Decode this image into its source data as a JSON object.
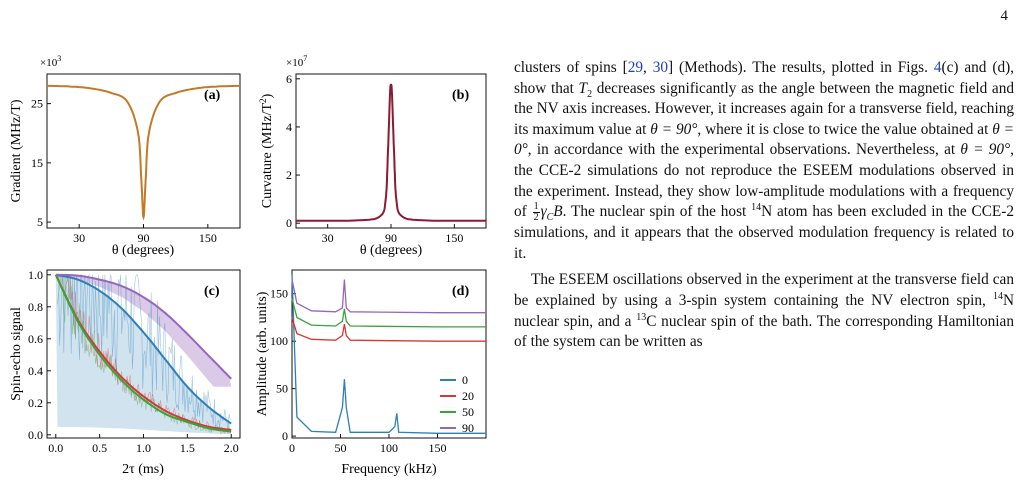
{
  "page_number": "4",
  "colors": {
    "gradient_curve": "#c47a25",
    "curvature_curve": "#8b1a33",
    "angle_0": "#2d7fb8",
    "angle_20": "#d93636",
    "angle_50": "#3aa33a",
    "angle_90": "#9467bd"
  },
  "panels": {
    "a": {
      "label": "(a)",
      "ylabel": "Gradient (MHz/T)",
      "xlabel": "θ (degrees)",
      "multiplier": "×10",
      "multiplier_exp": "3",
      "yticks": [
        "5",
        "15",
        "25"
      ],
      "xticks": [
        "30",
        "90",
        "150"
      ]
    },
    "b": {
      "label": "(b)",
      "ylabel": "Curvature (MHz/T",
      "ylabel_sup": "2",
      "ylabel_end": ")",
      "xlabel": "θ (degrees)",
      "multiplier": "×10",
      "multiplier_exp": "7",
      "yticks": [
        "0",
        "2",
        "4",
        "6"
      ],
      "xticks": [
        "30",
        "90",
        "150"
      ]
    },
    "c": {
      "label": "(c)",
      "ylabel": "Spin-echo signal",
      "xlabel": "2τ (ms)",
      "yticks": [
        "0.0",
        "0.2",
        "0.4",
        "0.6",
        "0.8",
        "1.0"
      ],
      "xticks": [
        "0.0",
        "0.5",
        "1.0",
        "1.5",
        "2.0"
      ]
    },
    "d": {
      "label": "(d)",
      "ylabel": "Amplitude (arb. units)",
      "xlabel": "Frequency (kHz)",
      "yticks": [
        "0",
        "50",
        "100",
        "150"
      ],
      "xticks": [
        "0",
        "50",
        "100",
        "150"
      ],
      "legend": [
        "0",
        "20",
        "50",
        "90"
      ]
    }
  },
  "chart_data": [
    {
      "type": "line",
      "panel": "a",
      "x": [
        0,
        20,
        40,
        60,
        75,
        85,
        88,
        90,
        92,
        95,
        105,
        120,
        140,
        160,
        180
      ],
      "y": [
        28,
        27.9,
        27.6,
        26.8,
        25.3,
        20,
        12,
        5.8,
        12,
        20,
        25.3,
        26.8,
        27.6,
        27.9,
        28
      ],
      "xlim": [
        0,
        180
      ],
      "ylim": [
        4,
        30
      ]
    },
    {
      "type": "line",
      "panel": "b",
      "x": [
        0,
        60,
        80,
        85,
        87,
        89,
        90,
        91,
        93,
        95,
        100,
        120,
        180
      ],
      "y": [
        0.1,
        0.12,
        0.3,
        1.0,
        2.8,
        5.3,
        5.75,
        5.3,
        2.8,
        1.0,
        0.3,
        0.12,
        0.1
      ],
      "xlim": [
        0,
        180
      ],
      "ylim": [
        -0.2,
        6.2
      ]
    },
    {
      "type": "line",
      "panel": "c",
      "xlim": [
        -0.1,
        2.1
      ],
      "ylim": [
        -0.02,
        1.03
      ],
      "series": [
        {
          "name": "0",
          "x": [
            0,
            0.25,
            0.5,
            0.75,
            1.0,
            1.25,
            1.5,
            1.75,
            2.0
          ],
          "y": [
            1.0,
            0.97,
            0.9,
            0.79,
            0.64,
            0.47,
            0.3,
            0.17,
            0.07
          ]
        },
        {
          "name": "20",
          "x": [
            0,
            0.25,
            0.5,
            0.75,
            1.0,
            1.25,
            1.5,
            1.75,
            2.0
          ],
          "y": [
            1.0,
            0.72,
            0.52,
            0.36,
            0.24,
            0.15,
            0.09,
            0.05,
            0.03
          ]
        },
        {
          "name": "50",
          "x": [
            0,
            0.25,
            0.5,
            0.75,
            1.0,
            1.25,
            1.5,
            1.75,
            2.0
          ],
          "y": [
            1.0,
            0.71,
            0.5,
            0.34,
            0.22,
            0.13,
            0.08,
            0.04,
            0.02
          ]
        },
        {
          "name": "90",
          "x": [
            0,
            0.25,
            0.5,
            0.75,
            1.0,
            1.25,
            1.5,
            1.75,
            2.0
          ],
          "y": [
            1.0,
            0.995,
            0.97,
            0.93,
            0.86,
            0.76,
            0.63,
            0.49,
            0.35
          ]
        }
      ]
    },
    {
      "type": "line",
      "panel": "d",
      "xlim": [
        0,
        200
      ],
      "ylim": [
        -2,
        175
      ],
      "series": [
        {
          "name": "0",
          "x": [
            0,
            5,
            20,
            45,
            52,
            54,
            56,
            60,
            100,
            106,
            108,
            110,
            150,
            200
          ],
          "y": [
            170,
            20,
            5,
            4,
            30,
            60,
            30,
            4,
            4,
            10,
            24,
            4,
            3,
            3
          ]
        },
        {
          "name": "20",
          "x": [
            0,
            5,
            20,
            45,
            52,
            54,
            56,
            60,
            150,
            200
          ],
          "y": [
            125,
            108,
            102,
            101,
            106,
            118,
            106,
            101,
            100,
            100
          ]
        },
        {
          "name": "50",
          "x": [
            0,
            5,
            20,
            45,
            52,
            54,
            56,
            60,
            150,
            200
          ],
          "y": [
            145,
            125,
            117,
            116,
            121,
            134,
            121,
            116,
            115,
            115
          ]
        },
        {
          "name": "90",
          "x": [
            0,
            5,
            20,
            45,
            52,
            54,
            56,
            60,
            150,
            200
          ],
          "y": [
            165,
            140,
            132,
            131,
            135,
            165,
            135,
            131,
            130,
            130
          ]
        }
      ]
    }
  ],
  "text": {
    "p1_a": "clusters of spins [",
    "ref_29": "29",
    "ref_sep": ", ",
    "ref_30": "30",
    "p1_b": "] (Methods). The results, plotted in Figs. ",
    "fig_ref": "4",
    "p1_c": "(c) and (d), show that ",
    "T": "T",
    "T_sub": "2",
    "p1_d": " decreases significantly as the angle between the magnetic field and the NV axis increases. However, it increases again for a transverse field, reaching its maximum value at ",
    "theta90": "θ = 90°",
    "p1_e": ", where it is close to twice the value obtained at ",
    "theta0": "θ = 0°",
    "p1_f": ", in accordance with the experimental observations. Nevertheless, at ",
    "p1_g": ", the CCE-2 simulations do not reproduce the ESEEM modulations observed in the experiment. Instead, they show low-amplitude modulations with a frequency of ",
    "frac_num": "1",
    "frac_den": "2",
    "gamma": "γ",
    "gamma_sub": "C",
    "B": "B",
    "p1_h": ". The nuclear spin of the host ",
    "n14": "14",
    "p1_i": "N atom has been excluded in the CCE-2 simulations, and it appears that the observed modulation frequency is related to it.",
    "p2_a": "The ESEEM oscillations observed in the experiment at the transverse field can be explained by using a 3-spin system containing the NV electron spin, ",
    "p2_b": "N nuclear spin, and a ",
    "c13": "13",
    "p2_c": "C nuclear spin of the bath. The corresponding Hamiltonian of the system can be written as"
  }
}
